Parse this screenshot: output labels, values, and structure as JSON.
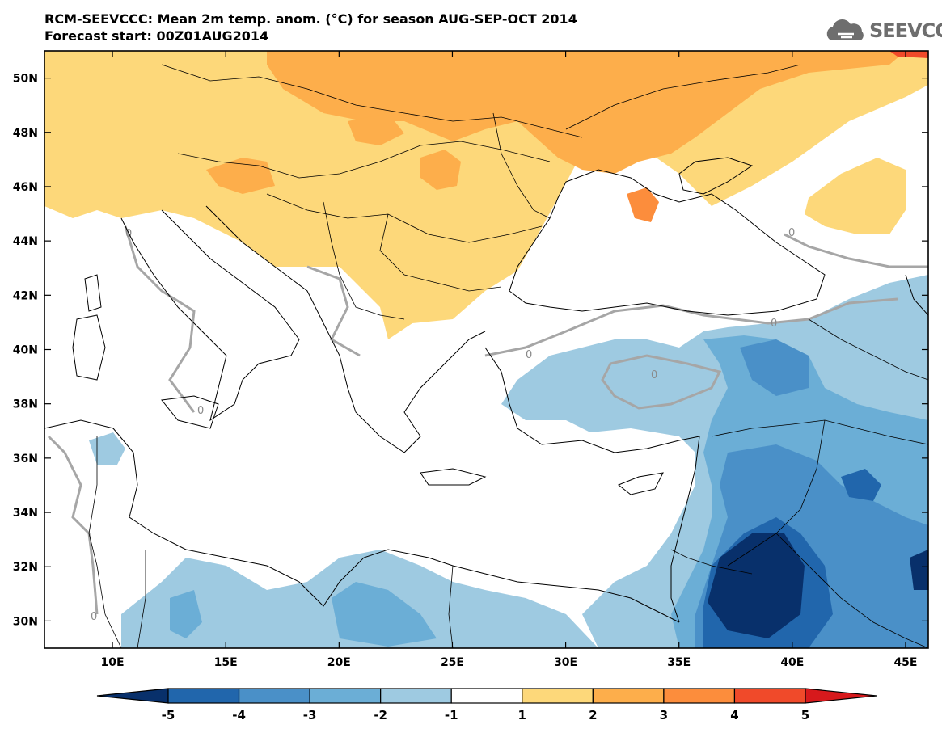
{
  "header": {
    "title": "RCM-SEEVCCC: Mean 2m temp. anom. (°C) for season AUG-SEP-OCT 2014",
    "subtitle": "Forecast start: 00Z01AUG2014",
    "logo_text": "SEEVCCC",
    "logo_icon": "cloud-icon"
  },
  "map": {
    "lat_range": [
      29,
      51
    ],
    "lon_range": [
      7,
      46
    ],
    "lat_ticks": [
      "30N",
      "32N",
      "34N",
      "36N",
      "38N",
      "40N",
      "42N",
      "44N",
      "46N",
      "48N",
      "50N"
    ],
    "lat_values": [
      30,
      32,
      34,
      36,
      38,
      40,
      42,
      44,
      46,
      48,
      50
    ],
    "lon_ticks": [
      "10E",
      "15E",
      "20E",
      "25E",
      "30E",
      "35E",
      "40E",
      "45E"
    ],
    "lon_values": [
      10,
      15,
      20,
      25,
      30,
      35,
      40,
      45
    ],
    "contour_label": "0"
  },
  "colorbar": {
    "labels": [
      "-5",
      "-4",
      "-3",
      "-2",
      "-1",
      "1",
      "2",
      "3",
      "4",
      "5"
    ],
    "colors": [
      "#08306b",
      "#2166ac",
      "#4a90c8",
      "#6baed6",
      "#9ecae1",
      "#ffffff",
      "#fdd87a",
      "#fdae4b",
      "#fc8d3c",
      "#f04a2a",
      "#d7191c"
    ]
  }
}
